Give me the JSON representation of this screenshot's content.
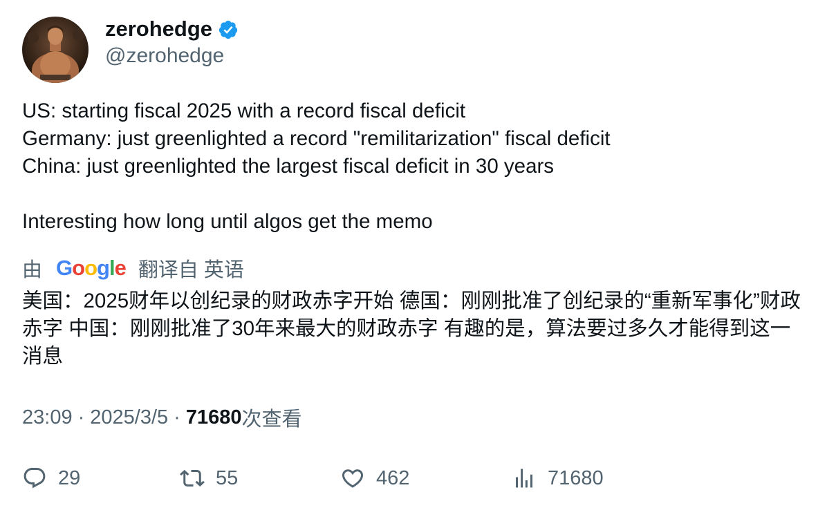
{
  "author": {
    "display_name": "zerohedge",
    "handle": "@zerohedge",
    "verified_icon": "verified-badge-icon",
    "verified_color": "#1d9bf0"
  },
  "tweet": {
    "lines": [
      "US: starting fiscal 2025 with a record fiscal deficit",
      "Germany: just greenlighted a record \"remilitarization\" fiscal deficit",
      "China: just greenlighted the largest fiscal deficit in 30 years",
      "",
      "Interesting how long until algos get the memo"
    ]
  },
  "translation": {
    "by_label": "由",
    "google_letters": [
      "G",
      "o",
      "o",
      "g",
      "l",
      "e"
    ],
    "translated_from_label": "翻译自 英语",
    "text": "美国：2025财年以创纪录的财政赤字开始 德国：刚刚批准了创纪录的“重新军事化”财政赤字 中国：刚刚批准了30年来最大的财政赤字 有趣的是，算法要过多久才能得到这一消息"
  },
  "meta": {
    "time": "23:09",
    "date": "2025/3/5",
    "separator": "·",
    "views_count": "71680",
    "views_label": "次查看"
  },
  "actions": {
    "replies": "29",
    "retweets": "55",
    "likes": "462",
    "views": "71680"
  },
  "colors": {
    "text_primary": "#0f1419",
    "text_secondary": "#536471",
    "verified": "#1d9bf0"
  }
}
